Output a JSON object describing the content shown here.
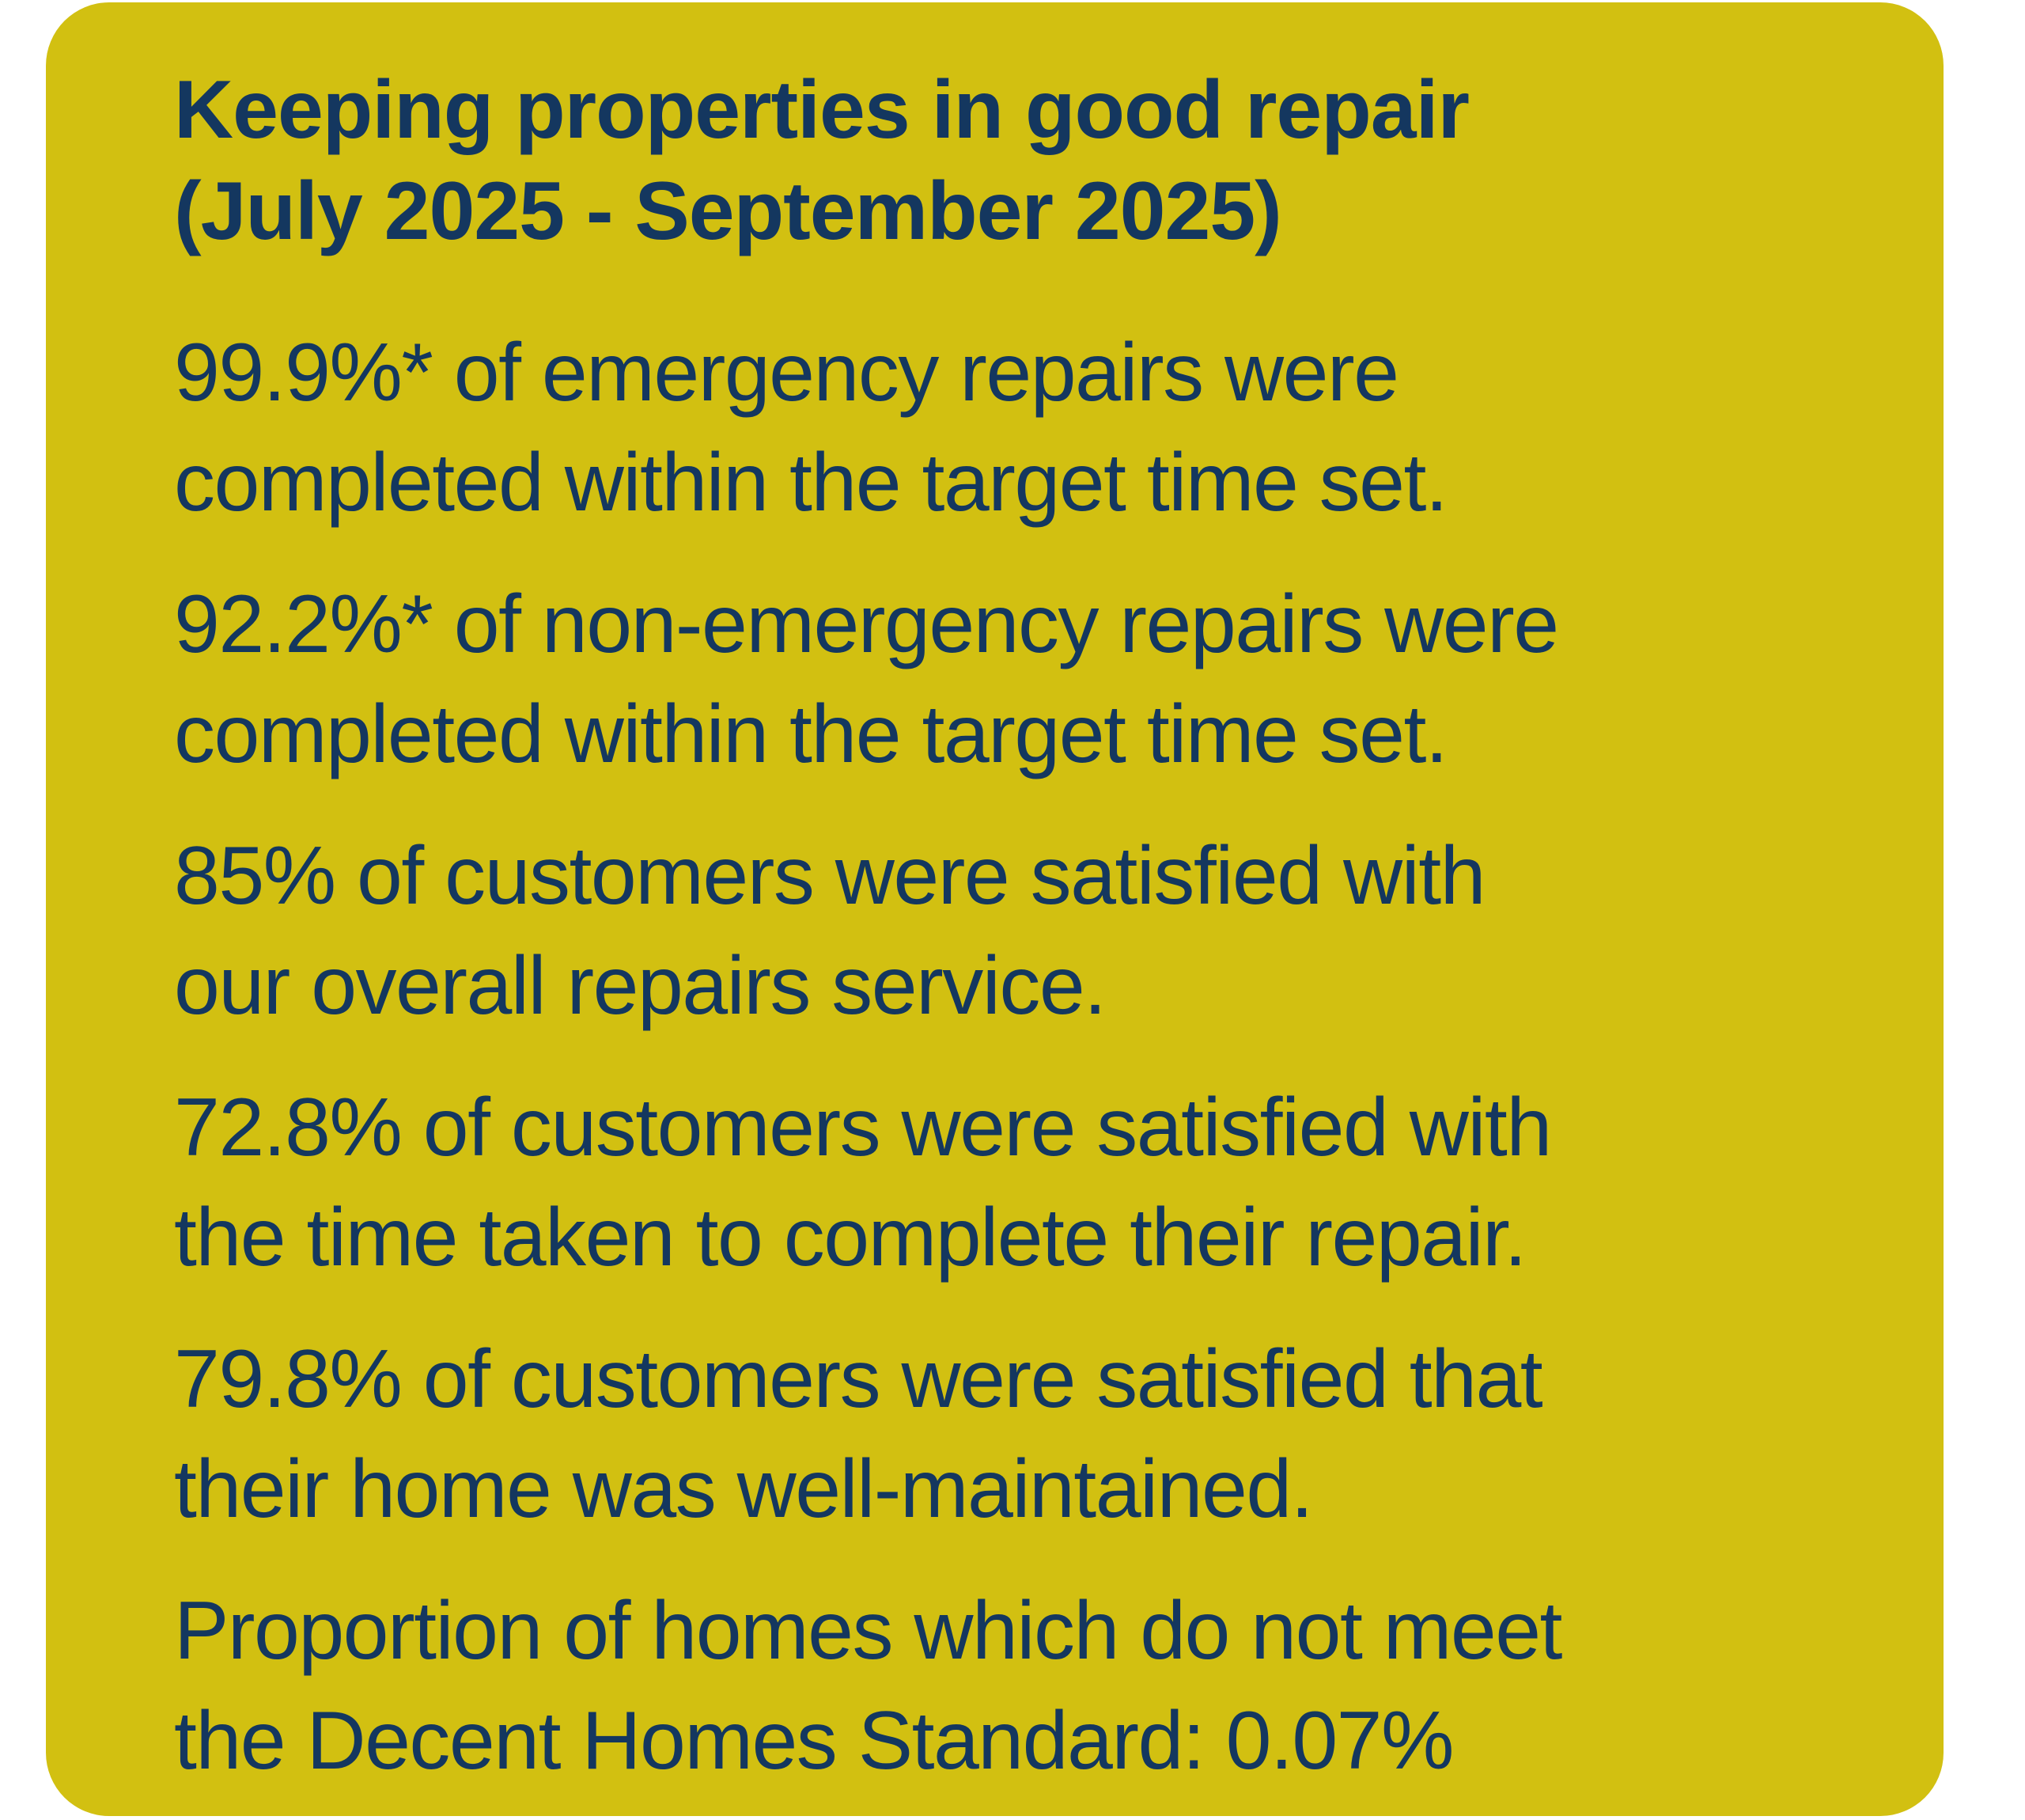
{
  "card": {
    "title": {
      "line1": "Keeping properties in good repair",
      "line2": "(July 2025 - September 2025)"
    },
    "stats": [
      {
        "line1": "99.9%* of emergency repairs were",
        "line2": "completed within the target time set."
      },
      {
        "line1": "92.2%* of non-emergency repairs were",
        "line2": "completed within the target time set."
      },
      {
        "line1": "85% of customers were satisfied with",
        "line2": "our overall repairs service."
      },
      {
        "line1": "72.8% of customers were satisfied with",
        "line2": "the time taken to complete their repair."
      },
      {
        "line1": "79.8% of customers were satisfied that",
        "line2": "their home was well-maintained."
      },
      {
        "line1": "Proportion of homes which do not meet",
        "line2": "the Decent Homes Standard: 0.07%"
      }
    ],
    "colors": {
      "card_background": "#d2c011",
      "text": "#14375f",
      "page_background": "#ffffff"
    }
  }
}
